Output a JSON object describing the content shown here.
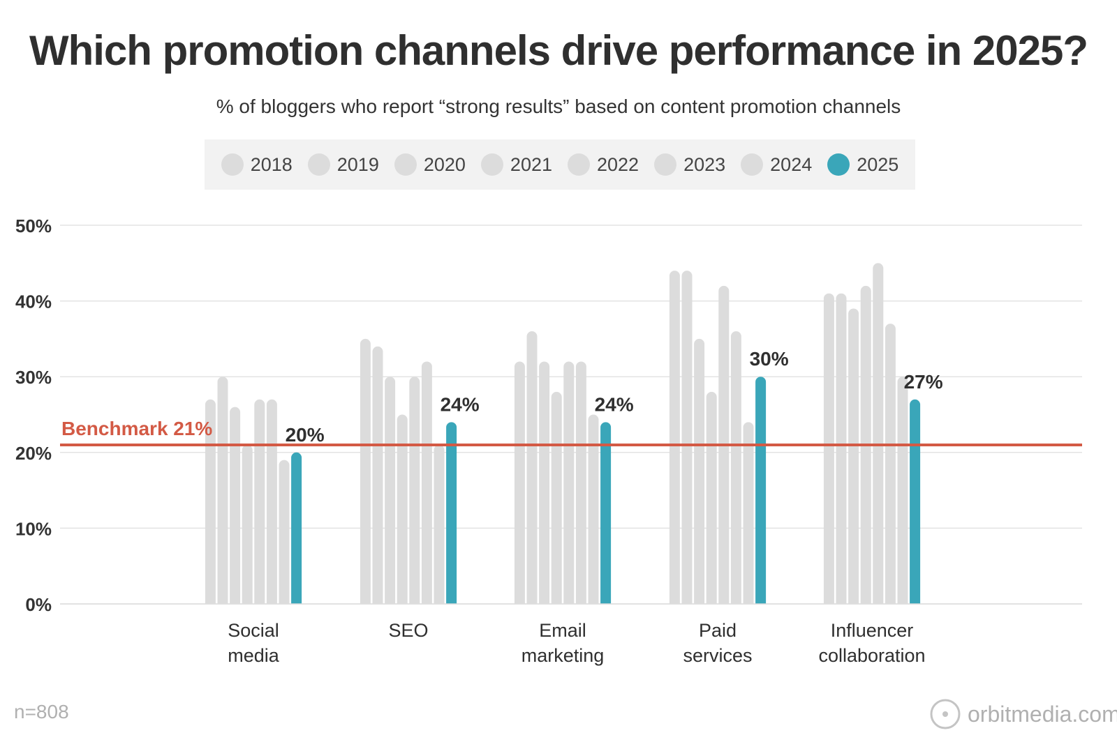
{
  "header": {
    "title": "Which promotion channels drive performance in 2025?",
    "subtitle": "% of bloggers who report “strong results” based on content promotion channels"
  },
  "legend": {
    "items": [
      {
        "label": "2018",
        "color": "#dcdcdc"
      },
      {
        "label": "2019",
        "color": "#dcdcdc"
      },
      {
        "label": "2020",
        "color": "#dcdcdc"
      },
      {
        "label": "2021",
        "color": "#dcdcdc"
      },
      {
        "label": "2022",
        "color": "#dcdcdc"
      },
      {
        "label": "2023",
        "color": "#dcdcdc"
      },
      {
        "label": "2024",
        "color": "#dcdcdc"
      },
      {
        "label": "2025",
        "color": "#3aa6b9"
      }
    ]
  },
  "chart_data": {
    "type": "bar",
    "title": "Which promotion channels drive performance in 2025?",
    "subtitle": "% of bloggers who report “strong results” based on content promotion channels",
    "xlabel": "",
    "ylabel": "",
    "ylim": [
      0,
      50
    ],
    "yticks": [
      0,
      10,
      20,
      30,
      40,
      50
    ],
    "ytick_labels": [
      "0%",
      "10%",
      "20%",
      "30%",
      "40%",
      "50%"
    ],
    "grid": true,
    "legend_position": "top-center",
    "categories": [
      [
        "Social",
        "media"
      ],
      [
        "SEO"
      ],
      [
        "Email",
        "marketing"
      ],
      [
        "Paid",
        "services"
      ],
      [
        "Influencer",
        "collaboration"
      ]
    ],
    "series": [
      {
        "name": "2018",
        "color": "#dcdcdc",
        "values": [
          27,
          35,
          32,
          44,
          41
        ]
      },
      {
        "name": "2019",
        "color": "#dcdcdc",
        "values": [
          30,
          34,
          36,
          44,
          41
        ]
      },
      {
        "name": "2020",
        "color": "#dcdcdc",
        "values": [
          26,
          30,
          32,
          35,
          39
        ]
      },
      {
        "name": "2021",
        "color": "#dcdcdc",
        "values": [
          21,
          25,
          28,
          28,
          42
        ]
      },
      {
        "name": "2022",
        "color": "#dcdcdc",
        "values": [
          27,
          30,
          32,
          42,
          45
        ]
      },
      {
        "name": "2023",
        "color": "#dcdcdc",
        "values": [
          27,
          32,
          32,
          36,
          37
        ]
      },
      {
        "name": "2024",
        "color": "#dcdcdc",
        "values": [
          19,
          21,
          25,
          24,
          30
        ]
      },
      {
        "name": "2025",
        "color": "#3aa6b9",
        "values": [
          20,
          24,
          24,
          30,
          27
        ]
      }
    ],
    "data_labels": [
      "20%",
      "24%",
      "24%",
      "30%",
      "27%"
    ],
    "benchmark": {
      "value": 21,
      "label": "Benchmark 21%",
      "color": "#d35a45"
    }
  },
  "footer": {
    "note": "n=808",
    "brand": "orbitmedia.com"
  }
}
